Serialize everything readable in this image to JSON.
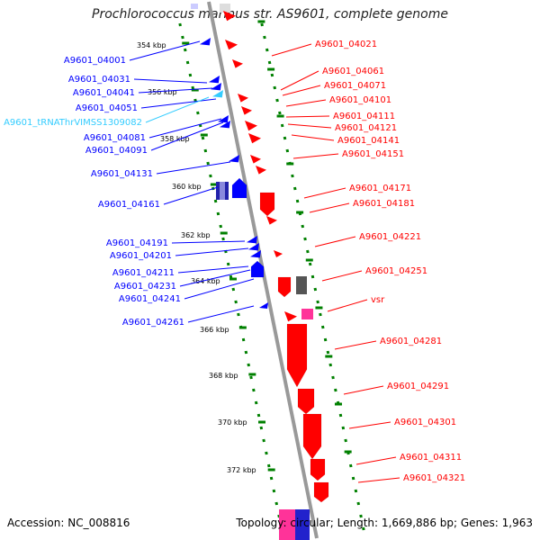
{
  "title": "Prochlorococcus marinus str. AS9601, complete genome",
  "accession": "Accession: NC_008816",
  "summary": "Topology: circular; Length: 1,669,886 bp; Genes: 1,963",
  "colors": {
    "plus_strand": "#ff0000",
    "minus_strand": "#0000ff",
    "trna": "#33ccff",
    "other": "#555555",
    "misc": "#ff3399",
    "backbone": "#999999",
    "ticks": "#008000"
  },
  "scale_labels": [
    "354 kbp",
    "356 kbp",
    "358 kbp",
    "360 kbp",
    "362 kbp",
    "364 kbp",
    "366 kbp",
    "368 kbp",
    "370 kbp",
    "372 kbp"
  ],
  "left_genes": [
    {
      "label": "A9601_04001",
      "type": "cds"
    },
    {
      "label": "A9601_04031",
      "type": "cds"
    },
    {
      "label": "A9601_04041",
      "type": "cds"
    },
    {
      "label": "A9601_04051",
      "type": "cds"
    },
    {
      "label": "A9601_tRNAThrVIMSS1309082",
      "type": "trna"
    },
    {
      "label": "A9601_04081",
      "type": "cds"
    },
    {
      "label": "A9601_04091",
      "type": "cds"
    },
    {
      "label": "A9601_04131",
      "type": "cds"
    },
    {
      "label": "A9601_04161",
      "type": "cds"
    },
    {
      "label": "A9601_04191",
      "type": "cds"
    },
    {
      "label": "A9601_04201",
      "type": "cds"
    },
    {
      "label": "A9601_04211",
      "type": "cds"
    },
    {
      "label": "A9601_04231",
      "type": "cds"
    },
    {
      "label": "A9601_04241",
      "type": "cds"
    },
    {
      "label": "A9601_04261",
      "type": "cds"
    }
  ],
  "right_genes": [
    {
      "label": "A9601_04021",
      "type": "cds"
    },
    {
      "label": "A9601_04061",
      "type": "cds"
    },
    {
      "label": "A9601_04071",
      "type": "cds"
    },
    {
      "label": "A9601_04101",
      "type": "cds"
    },
    {
      "label": "A9601_04111",
      "type": "cds"
    },
    {
      "label": "A9601_04121",
      "type": "cds"
    },
    {
      "label": "A9601_04141",
      "type": "cds"
    },
    {
      "label": "A9601_04151",
      "type": "cds"
    },
    {
      "label": "A9601_04171",
      "type": "cds"
    },
    {
      "label": "A9601_04181",
      "type": "cds"
    },
    {
      "label": "A9601_04221",
      "type": "cds"
    },
    {
      "label": "A9601_04251",
      "type": "cds"
    },
    {
      "label": "vsr",
      "type": "cds"
    },
    {
      "label": "A9601_04281",
      "type": "cds"
    },
    {
      "label": "A9601_04291",
      "type": "cds"
    },
    {
      "label": "A9601_04301",
      "type": "cds"
    },
    {
      "label": "A9601_04311",
      "type": "cds"
    },
    {
      "label": "A9601_04321",
      "type": "cds"
    }
  ]
}
